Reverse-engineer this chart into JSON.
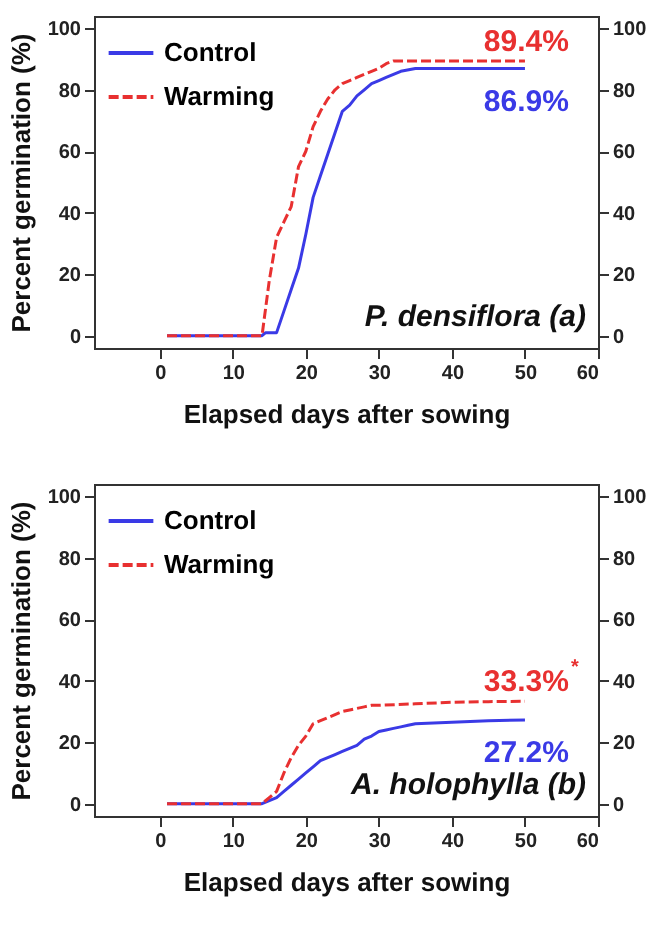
{
  "chart_data": [
    {
      "type": "line",
      "xlabel": "Elapsed days after sowing",
      "ylabel": "Percent germination (%)",
      "annotations": [
        "P. densiflora (a)"
      ],
      "xlim": [
        -9,
        60
      ],
      "xticks": [
        0,
        10,
        20,
        30,
        40,
        50,
        60
      ],
      "ylim": [
        -4,
        104
      ],
      "yticks": [
        0,
        20,
        40,
        60,
        80,
        100
      ],
      "y2lim": [
        -4,
        104
      ],
      "y2ticks": [
        0,
        20,
        40,
        60,
        80,
        100
      ],
      "legend": "top left",
      "grid": false,
      "marker": "none",
      "series": [
        {
          "name": "Control",
          "color": "#3a3ae6",
          "line_style": "solid",
          "x": [
            1,
            14,
            14.5,
            16,
            17,
            18,
            19,
            20,
            21,
            22,
            23,
            24,
            25,
            26,
            27,
            28,
            29,
            30,
            31,
            32,
            33,
            35,
            50
          ],
          "values": [
            0,
            0,
            1,
            1,
            8,
            15,
            22,
            33,
            45,
            52,
            59,
            66,
            73,
            75,
            78,
            80,
            82,
            83,
            84,
            85,
            86,
            86.9,
            86.9
          ],
          "value_labels": [
            null,
            null,
            null,
            null,
            null,
            null,
            null,
            null,
            null,
            null,
            null,
            null,
            null,
            null,
            null,
            null,
            null,
            null,
            null,
            null,
            null,
            null,
            "86.9%"
          ]
        },
        {
          "name": "Warming",
          "color": "#e83030",
          "line_style": "dashed",
          "x": [
            1,
            14,
            15,
            16,
            17,
            18,
            19,
            20,
            21,
            22,
            23,
            24,
            25,
            26,
            27,
            28,
            29,
            30,
            31,
            32,
            50
          ],
          "values": [
            0,
            0,
            18,
            32,
            37,
            42,
            55,
            60,
            68,
            73,
            77,
            80,
            82,
            83,
            84,
            85,
            86,
            87,
            88.5,
            89.4,
            89.4
          ],
          "value_labels": [
            null,
            null,
            null,
            null,
            null,
            null,
            null,
            null,
            null,
            null,
            null,
            null,
            null,
            null,
            null,
            null,
            null,
            null,
            null,
            null,
            "89.4%"
          ]
        }
      ]
    },
    {
      "type": "line",
      "xlabel": "Elapsed days after sowing",
      "ylabel": "Percent germination (%)",
      "annotations": [
        "A. holophylla (b)"
      ],
      "xlim": [
        -9,
        60
      ],
      "xticks": [
        0,
        10,
        20,
        30,
        40,
        50,
        60
      ],
      "ylim": [
        -4,
        104
      ],
      "yticks": [
        0,
        20,
        40,
        60,
        80,
        100
      ],
      "y2lim": [
        -4,
        104
      ],
      "y2ticks": [
        0,
        20,
        40,
        60,
        80,
        100
      ],
      "legend": "top left",
      "grid": false,
      "marker": "none",
      "series": [
        {
          "name": "Control",
          "color": "#3a3ae6",
          "line_style": "solid",
          "x": [
            1,
            14,
            15,
            16,
            17,
            18,
            19,
            20,
            21,
            22,
            23,
            24,
            25,
            26,
            27,
            28,
            29,
            30,
            31,
            32,
            33,
            34,
            35,
            40,
            45,
            50
          ],
          "values": [
            0,
            0,
            1,
            2,
            4,
            6,
            8,
            10,
            12,
            14,
            15,
            16,
            17,
            18,
            19,
            21,
            22,
            23.5,
            24,
            24.5,
            25,
            25.5,
            26,
            26.5,
            27,
            27.2
          ],
          "value_labels": [
            null,
            null,
            null,
            null,
            null,
            null,
            null,
            null,
            null,
            null,
            null,
            null,
            null,
            null,
            null,
            null,
            null,
            null,
            null,
            null,
            null,
            null,
            null,
            null,
            null,
            "27.2%"
          ]
        },
        {
          "name": "Warming",
          "color": "#e83030",
          "line_style": "dashed",
          "x": [
            1,
            14,
            15,
            16,
            17,
            18,
            19,
            20,
            21,
            22,
            23,
            24,
            25,
            26,
            27,
            28,
            29,
            30,
            35,
            40,
            45,
            50
          ],
          "values": [
            0,
            0,
            2,
            4,
            10,
            15,
            19,
            22,
            26,
            27,
            28,
            29,
            30,
            30.5,
            31,
            31.5,
            32,
            32,
            32.5,
            33,
            33.2,
            33.3
          ],
          "value_labels": [
            null,
            null,
            null,
            null,
            null,
            null,
            null,
            null,
            null,
            null,
            null,
            null,
            null,
            null,
            null,
            null,
            null,
            null,
            null,
            null,
            null,
            "33.3%$^{*}$"
          ]
        }
      ]
    }
  ]
}
